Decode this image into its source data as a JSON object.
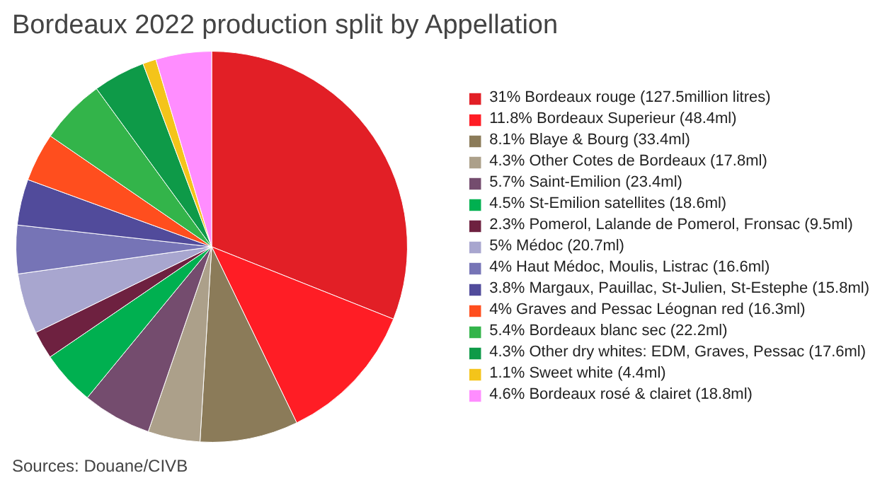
{
  "chart_data": {
    "type": "pie",
    "title": "Bordeaux 2022 production split by Appellation",
    "categories": [
      "31% Bordeaux rouge (127.5million litres)",
      "11.8% Bordeaux Superieur (48.4ml)",
      "8.1% Blaye & Bourg (33.4ml)",
      "4.3% Other Cotes de Bordeaux (17.8ml)",
      "5.7% Saint-Emilion (23.4ml)",
      "4.5% St-Emilion satellites (18.6ml)",
      "2.3% Pomerol, Lalande de Pomerol, Fronsac (9.5ml)",
      "5% Médoc (20.7ml)",
      "4% Haut Médoc, Moulis, Listrac (16.6ml)",
      "3.8% Margaux, Pauillac, St-Julien, St-Estephe (15.8ml)",
      "4% Graves and Pessac Léognan red (16.3ml)",
      "5.4% Bordeaux blanc sec (22.2ml)",
      "4.3% Other dry whites: EDM, Graves, Pessac (17.6ml)",
      "1.1% Sweet white (4.4ml)",
      "4.6% Bordeaux rosé & clairet (18.8ml)"
    ],
    "values": [
      31,
      11.8,
      8.1,
      4.3,
      5.7,
      4.5,
      2.3,
      5,
      4,
      3.8,
      4,
      5.4,
      4.3,
      1.1,
      4.6
    ],
    "colors": [
      "#e21f26",
      "#ff1d25",
      "#8b7b59",
      "#aca08a",
      "#744c6e",
      "#00b050",
      "#6e2140",
      "#a8a6cf",
      "#7674b6",
      "#514b9b",
      "#ff4e1e",
      "#33b44a",
      "#0e9a48",
      "#f4c41a",
      "#ff8dff"
    ],
    "legend": "right",
    "annotations": [
      "Sources: Douane/CIVB"
    ]
  }
}
